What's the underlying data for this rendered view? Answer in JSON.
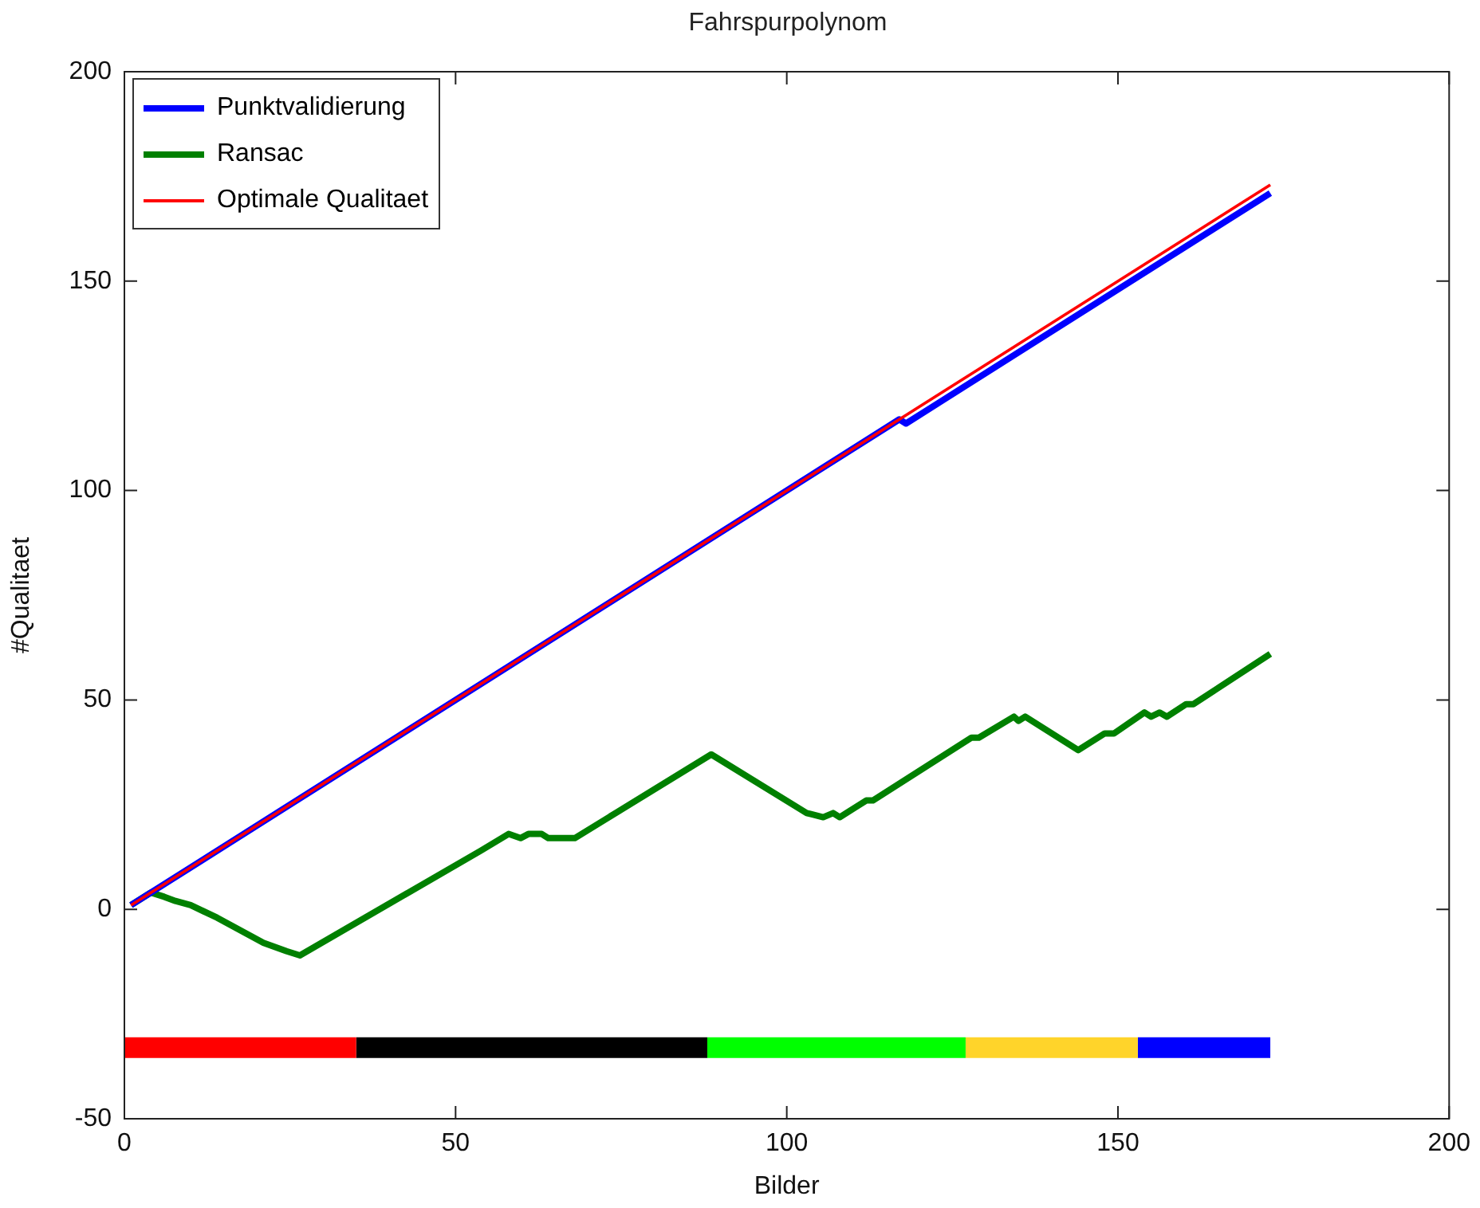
{
  "chart_data": {
    "type": "line",
    "title": "Fahrspurpolynom",
    "xlabel": "Bilder",
    "ylabel": "#Qualitaet",
    "xlim": [
      0,
      200
    ],
    "xticks": [
      0,
      50,
      100,
      150,
      200
    ],
    "ylim": [
      -50,
      200
    ],
    "yticks": [
      -50,
      0,
      50,
      100,
      150,
      200
    ],
    "grid": false,
    "legend": "top left",
    "marker": "none",
    "line_style": "solid",
    "series": [
      {
        "name": "Punktvalidierung",
        "color": "#0000ff",
        "x": [
          1,
          117,
          118,
          173
        ],
        "values": [
          1,
          117,
          116,
          171
        ]
      },
      {
        "name": "Ransac",
        "color": "#008000",
        "x": [
          1,
          4,
          6,
          7.7,
          10,
          14,
          21,
          24.5,
          26.5,
          53.8,
          58,
          59.8,
          61,
          63,
          64,
          68,
          88.6,
          103,
          105.5,
          107,
          108,
          112,
          113,
          127.9,
          129,
          134.3,
          135,
          136,
          144,
          148,
          149.4,
          154,
          155,
          156.3,
          157.4,
          160.3,
          161.4,
          173
        ],
        "values": [
          1,
          4,
          3,
          2,
          1,
          -2,
          -8,
          -10,
          -11,
          14,
          18,
          17,
          18,
          18,
          17,
          17,
          37,
          23,
          22,
          23,
          22,
          26,
          26,
          41,
          41,
          46,
          45,
          46,
          38,
          42,
          42,
          47,
          46,
          47,
          46,
          49,
          49,
          61
        ]
      },
      {
        "name": "Optimale Qualitaet",
        "color": "#ff0000",
        "x": [
          1,
          173
        ],
        "values": [
          1,
          173
        ]
      },
      {
        "color": "#ff0000",
        "x": [
          0,
          35
        ],
        "values": [
          -33,
          -33
        ]
      },
      {
        "color": "#000000",
        "x": [
          35,
          88
        ],
        "values": [
          -33,
          -33
        ]
      },
      {
        "color": "#00ff00",
        "x": [
          88,
          127
        ],
        "values": [
          -33,
          -33
        ]
      },
      {
        "color": "#ffd42a",
        "x": [
          127,
          153
        ],
        "values": [
          -33,
          -33
        ]
      },
      {
        "color": "#0000ff",
        "x": [
          153,
          173
        ],
        "values": [
          -33,
          -33
        ]
      }
    ]
  }
}
